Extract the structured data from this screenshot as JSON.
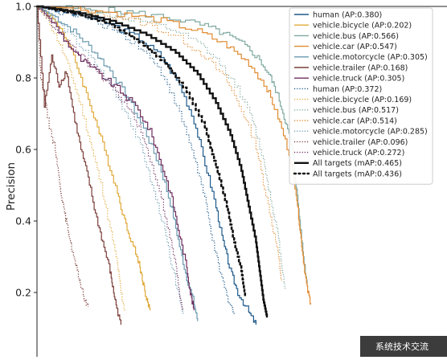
{
  "chart_data": {
    "type": "line",
    "title": "",
    "xlabel": "",
    "ylabel": "Precision",
    "xlim": [
      0,
      1
    ],
    "ylim": [
      0.1,
      1.0
    ],
    "y_ticks": [
      "0.2",
      "0.4",
      "0.6",
      "0.8",
      "1.0"
    ],
    "y_tick_values": [
      0.2,
      0.4,
      0.6,
      0.8,
      1.0
    ],
    "grid": false,
    "legend_position": "top-right",
    "series": [
      {
        "name": "human (AP:0.380)",
        "color": "#1f5a8a",
        "style": "solid",
        "points": [
          [
            0.0,
            1.0
          ],
          [
            0.05,
            0.99
          ],
          [
            0.12,
            0.975
          ],
          [
            0.2,
            0.95
          ],
          [
            0.28,
            0.91
          ],
          [
            0.34,
            0.86
          ],
          [
            0.39,
            0.78
          ],
          [
            0.43,
            0.68
          ],
          [
            0.46,
            0.56
          ],
          [
            0.49,
            0.44
          ],
          [
            0.51,
            0.34
          ],
          [
            0.53,
            0.26
          ],
          [
            0.55,
            0.2
          ],
          [
            0.58,
            0.145
          ],
          [
            0.6,
            0.11
          ]
        ]
      },
      {
        "name": "vehicle.bicycle (AP:0.202)",
        "color": "#e0a93a",
        "style": "solid",
        "points": [
          [
            0.0,
            1.0
          ],
          [
            0.03,
            0.98
          ],
          [
            0.07,
            0.93
          ],
          [
            0.1,
            0.86
          ],
          [
            0.13,
            0.77
          ],
          [
            0.16,
            0.68
          ],
          [
            0.19,
            0.58
          ],
          [
            0.22,
            0.48
          ],
          [
            0.24,
            0.4
          ],
          [
            0.26,
            0.34
          ],
          [
            0.28,
            0.28
          ],
          [
            0.29,
            0.23
          ],
          [
            0.3,
            0.18
          ],
          [
            0.31,
            0.15
          ]
        ]
      },
      {
        "name": "vehicle.bus (AP:0.566)",
        "color": "#7fa8a0",
        "style": "solid",
        "points": [
          [
            0.0,
            1.0
          ],
          [
            0.08,
            0.995
          ],
          [
            0.18,
            0.99
          ],
          [
            0.28,
            0.98
          ],
          [
            0.38,
            0.965
          ],
          [
            0.46,
            0.945
          ],
          [
            0.52,
            0.92
          ],
          [
            0.57,
            0.89
          ],
          [
            0.61,
            0.85
          ],
          [
            0.64,
            0.8
          ],
          [
            0.66,
            0.75
          ],
          [
            0.68,
            0.68
          ],
          [
            0.7,
            0.6
          ],
          [
            0.71,
            0.5
          ],
          [
            0.72,
            0.4
          ],
          [
            0.73,
            0.3
          ],
          [
            0.74,
            0.22
          ]
        ]
      },
      {
        "name": "vehicle.car (AP:0.547)",
        "color": "#e08a30",
        "style": "solid",
        "points": [
          [
            0.0,
            1.0
          ],
          [
            0.1,
            0.995
          ],
          [
            0.22,
            0.98
          ],
          [
            0.34,
            0.96
          ],
          [
            0.44,
            0.93
          ],
          [
            0.52,
            0.89
          ],
          [
            0.58,
            0.84
          ],
          [
            0.63,
            0.77
          ],
          [
            0.66,
            0.69
          ],
          [
            0.69,
            0.59
          ],
          [
            0.71,
            0.48
          ],
          [
            0.72,
            0.38
          ],
          [
            0.73,
            0.29
          ],
          [
            0.74,
            0.21
          ],
          [
            0.75,
            0.17
          ]
        ]
      },
      {
        "name": "vehicle.motorcycle (AP:0.305)",
        "color": "#6a9ab0",
        "style": "solid",
        "points": [
          [
            0.0,
            1.0
          ],
          [
            0.05,
            0.97
          ],
          [
            0.1,
            0.93
          ],
          [
            0.15,
            0.88
          ],
          [
            0.2,
            0.82
          ],
          [
            0.25,
            0.74
          ],
          [
            0.3,
            0.64
          ],
          [
            0.34,
            0.54
          ],
          [
            0.37,
            0.43
          ],
          [
            0.39,
            0.33
          ],
          [
            0.41,
            0.24
          ],
          [
            0.43,
            0.17
          ],
          [
            0.44,
            0.12
          ]
        ]
      },
      {
        "name": "vehicle.trailer (AP:0.168)",
        "color": "#7a3f3a",
        "style": "solid",
        "points": [
          [
            0.0,
            1.0
          ],
          [
            0.02,
            0.72
          ],
          [
            0.04,
            0.86
          ],
          [
            0.06,
            0.78
          ],
          [
            0.08,
            0.82
          ],
          [
            0.1,
            0.7
          ],
          [
            0.12,
            0.6
          ],
          [
            0.14,
            0.52
          ],
          [
            0.16,
            0.42
          ],
          [
            0.18,
            0.34
          ],
          [
            0.2,
            0.26
          ],
          [
            0.21,
            0.2
          ],
          [
            0.22,
            0.15
          ],
          [
            0.23,
            0.11
          ]
        ]
      },
      {
        "name": "vehicle.truck (AP:0.305)",
        "color": "#6e2e5e",
        "style": "solid",
        "points": [
          [
            0.0,
            1.0
          ],
          [
            0.04,
            0.96
          ],
          [
            0.08,
            0.9
          ],
          [
            0.12,
            0.85
          ],
          [
            0.17,
            0.81
          ],
          [
            0.22,
            0.77
          ],
          [
            0.27,
            0.72
          ],
          [
            0.31,
            0.65
          ],
          [
            0.34,
            0.56
          ],
          [
            0.37,
            0.46
          ],
          [
            0.39,
            0.36
          ],
          [
            0.41,
            0.27
          ],
          [
            0.42,
            0.2
          ],
          [
            0.43,
            0.15
          ]
        ]
      },
      {
        "name": "human (AP:0.372)",
        "color": "#1f5a8a",
        "style": "dotted",
        "points": [
          [
            0.0,
            1.0
          ],
          [
            0.06,
            0.985
          ],
          [
            0.14,
            0.965
          ],
          [
            0.22,
            0.93
          ],
          [
            0.29,
            0.88
          ],
          [
            0.35,
            0.8
          ],
          [
            0.39,
            0.7
          ],
          [
            0.43,
            0.58
          ],
          [
            0.46,
            0.46
          ],
          [
            0.48,
            0.35
          ],
          [
            0.5,
            0.26
          ],
          [
            0.52,
            0.19
          ],
          [
            0.54,
            0.14
          ]
        ]
      },
      {
        "name": "vehicle.bicycle (AP:0.169)",
        "color": "#e0a93a",
        "style": "dotted",
        "points": [
          [
            0.0,
            1.0
          ],
          [
            0.03,
            0.96
          ],
          [
            0.06,
            0.9
          ],
          [
            0.09,
            0.82
          ],
          [
            0.12,
            0.72
          ],
          [
            0.15,
            0.6
          ],
          [
            0.18,
            0.48
          ],
          [
            0.2,
            0.38
          ],
          [
            0.22,
            0.28
          ],
          [
            0.23,
            0.2
          ],
          [
            0.24,
            0.15
          ]
        ]
      },
      {
        "name": "vehicle.bus (AP:0.517)",
        "color": "#7fa8a0",
        "style": "dotted",
        "points": [
          [
            0.0,
            1.0
          ],
          [
            0.1,
            0.99
          ],
          [
            0.2,
            0.975
          ],
          [
            0.3,
            0.955
          ],
          [
            0.38,
            0.93
          ],
          [
            0.45,
            0.89
          ],
          [
            0.5,
            0.84
          ],
          [
            0.55,
            0.77
          ],
          [
            0.59,
            0.68
          ],
          [
            0.62,
            0.57
          ],
          [
            0.64,
            0.46
          ],
          [
            0.66,
            0.36
          ],
          [
            0.67,
            0.28
          ],
          [
            0.68,
            0.21
          ]
        ]
      },
      {
        "name": "vehicle.car (AP:0.514)",
        "color": "#e08a30",
        "style": "dotted",
        "points": [
          [
            0.0,
            1.0
          ],
          [
            0.1,
            0.99
          ],
          [
            0.2,
            0.975
          ],
          [
            0.3,
            0.95
          ],
          [
            0.39,
            0.91
          ],
          [
            0.46,
            0.86
          ],
          [
            0.52,
            0.79
          ],
          [
            0.56,
            0.71
          ],
          [
            0.6,
            0.61
          ],
          [
            0.62,
            0.51
          ],
          [
            0.64,
            0.41
          ],
          [
            0.66,
            0.31
          ],
          [
            0.67,
            0.23
          ]
        ]
      },
      {
        "name": "vehicle.motorcycle (AP:0.285)",
        "color": "#6a9ab0",
        "style": "dotted",
        "points": [
          [
            0.0,
            1.0
          ],
          [
            0.05,
            0.96
          ],
          [
            0.1,
            0.91
          ],
          [
            0.15,
            0.85
          ],
          [
            0.2,
            0.78
          ],
          [
            0.25,
            0.69
          ],
          [
            0.29,
            0.59
          ],
          [
            0.32,
            0.48
          ],
          [
            0.35,
            0.37
          ],
          [
            0.37,
            0.27
          ],
          [
            0.39,
            0.19
          ],
          [
            0.4,
            0.14
          ]
        ]
      },
      {
        "name": "vehicle.trailer (AP:0.096)",
        "color": "#7a3f3a",
        "style": "dotted",
        "points": [
          [
            0.0,
            1.0
          ],
          [
            0.01,
            0.8
          ],
          [
            0.02,
            0.76
          ],
          [
            0.03,
            0.68
          ],
          [
            0.05,
            0.6
          ],
          [
            0.06,
            0.52
          ],
          [
            0.07,
            0.45
          ],
          [
            0.08,
            0.4
          ],
          [
            0.09,
            0.35
          ],
          [
            0.1,
            0.3
          ],
          [
            0.11,
            0.26
          ],
          [
            0.12,
            0.22
          ],
          [
            0.13,
            0.18
          ],
          [
            0.14,
            0.16
          ]
        ]
      },
      {
        "name": "vehicle.truck (AP:0.272)",
        "color": "#6e2e5e",
        "style": "dotted",
        "points": [
          [
            0.0,
            1.0
          ],
          [
            0.04,
            0.95
          ],
          [
            0.09,
            0.89
          ],
          [
            0.14,
            0.84
          ],
          [
            0.19,
            0.79
          ],
          [
            0.24,
            0.73
          ],
          [
            0.28,
            0.66
          ],
          [
            0.31,
            0.57
          ],
          [
            0.34,
            0.47
          ],
          [
            0.36,
            0.37
          ],
          [
            0.38,
            0.28
          ],
          [
            0.39,
            0.2
          ],
          [
            0.4,
            0.15
          ]
        ]
      },
      {
        "name": "All targets (mAP:0.465)",
        "color": "#111111",
        "style": "solid-thick",
        "points": [
          [
            0.0,
            1.0
          ],
          [
            0.1,
            0.985
          ],
          [
            0.2,
            0.96
          ],
          [
            0.3,
            0.92
          ],
          [
            0.38,
            0.87
          ],
          [
            0.44,
            0.81
          ],
          [
            0.49,
            0.73
          ],
          [
            0.53,
            0.64
          ],
          [
            0.56,
            0.54
          ],
          [
            0.58,
            0.44
          ],
          [
            0.6,
            0.34
          ],
          [
            0.61,
            0.26
          ],
          [
            0.62,
            0.18
          ],
          [
            0.63,
            0.13
          ]
        ]
      },
      {
        "name": "All targets (mAP:0.436)",
        "color": "#111111",
        "style": "dotted-thick",
        "points": [
          [
            0.0,
            1.0
          ],
          [
            0.1,
            0.98
          ],
          [
            0.2,
            0.95
          ],
          [
            0.28,
            0.9
          ],
          [
            0.35,
            0.84
          ],
          [
            0.41,
            0.76
          ],
          [
            0.46,
            0.66
          ],
          [
            0.49,
            0.55
          ],
          [
            0.52,
            0.44
          ],
          [
            0.54,
            0.34
          ],
          [
            0.56,
            0.26
          ],
          [
            0.57,
            0.19
          ]
        ]
      }
    ]
  },
  "legend": {
    "entries": [
      {
        "label": "human (AP:0.380)",
        "color": "#1f5a8a",
        "style": "solid"
      },
      {
        "label": "vehicle.bicycle (AP:0.202)",
        "color": "#e0a93a",
        "style": "solid"
      },
      {
        "label": "vehicle.bus (AP:0.566)",
        "color": "#7fa8a0",
        "style": "solid"
      },
      {
        "label": "vehicle.car (AP:0.547)",
        "color": "#e08a30",
        "style": "solid"
      },
      {
        "label": "vehicle.motorcycle (AP:0.305)",
        "color": "#6a9ab0",
        "style": "solid"
      },
      {
        "label": "vehicle.trailer (AP:0.168)",
        "color": "#7a3f3a",
        "style": "solid"
      },
      {
        "label": "vehicle.truck (AP:0.305)",
        "color": "#6e2e5e",
        "style": "solid"
      },
      {
        "label": "human (AP:0.372)",
        "color": "#1f5a8a",
        "style": "dotted"
      },
      {
        "label": "vehicle.bicycle (AP:0.169)",
        "color": "#e0a93a",
        "style": "dotted"
      },
      {
        "label": "vehicle.bus (AP:0.517)",
        "color": "#7fa8a0",
        "style": "dotted"
      },
      {
        "label": "vehicle.car (AP:0.514)",
        "color": "#e08a30",
        "style": "dotted"
      },
      {
        "label": "vehicle.motorcycle (AP:0.285)",
        "color": "#6a9ab0",
        "style": "dotted"
      },
      {
        "label": "vehicle.trailer (AP:0.096)",
        "color": "#7a3f3a",
        "style": "dotted"
      },
      {
        "label": "vehicle.truck (AP:0.272)",
        "color": "#6e2e5e",
        "style": "dotted"
      },
      {
        "label": "All targets (mAP:0.465)",
        "color": "#111111",
        "style": "solid-thick"
      },
      {
        "label": "All targets (mAP:0.436)",
        "color": "#111111",
        "style": "dotted-thick"
      }
    ]
  },
  "watermark": {
    "text": "系统技术交流"
  }
}
